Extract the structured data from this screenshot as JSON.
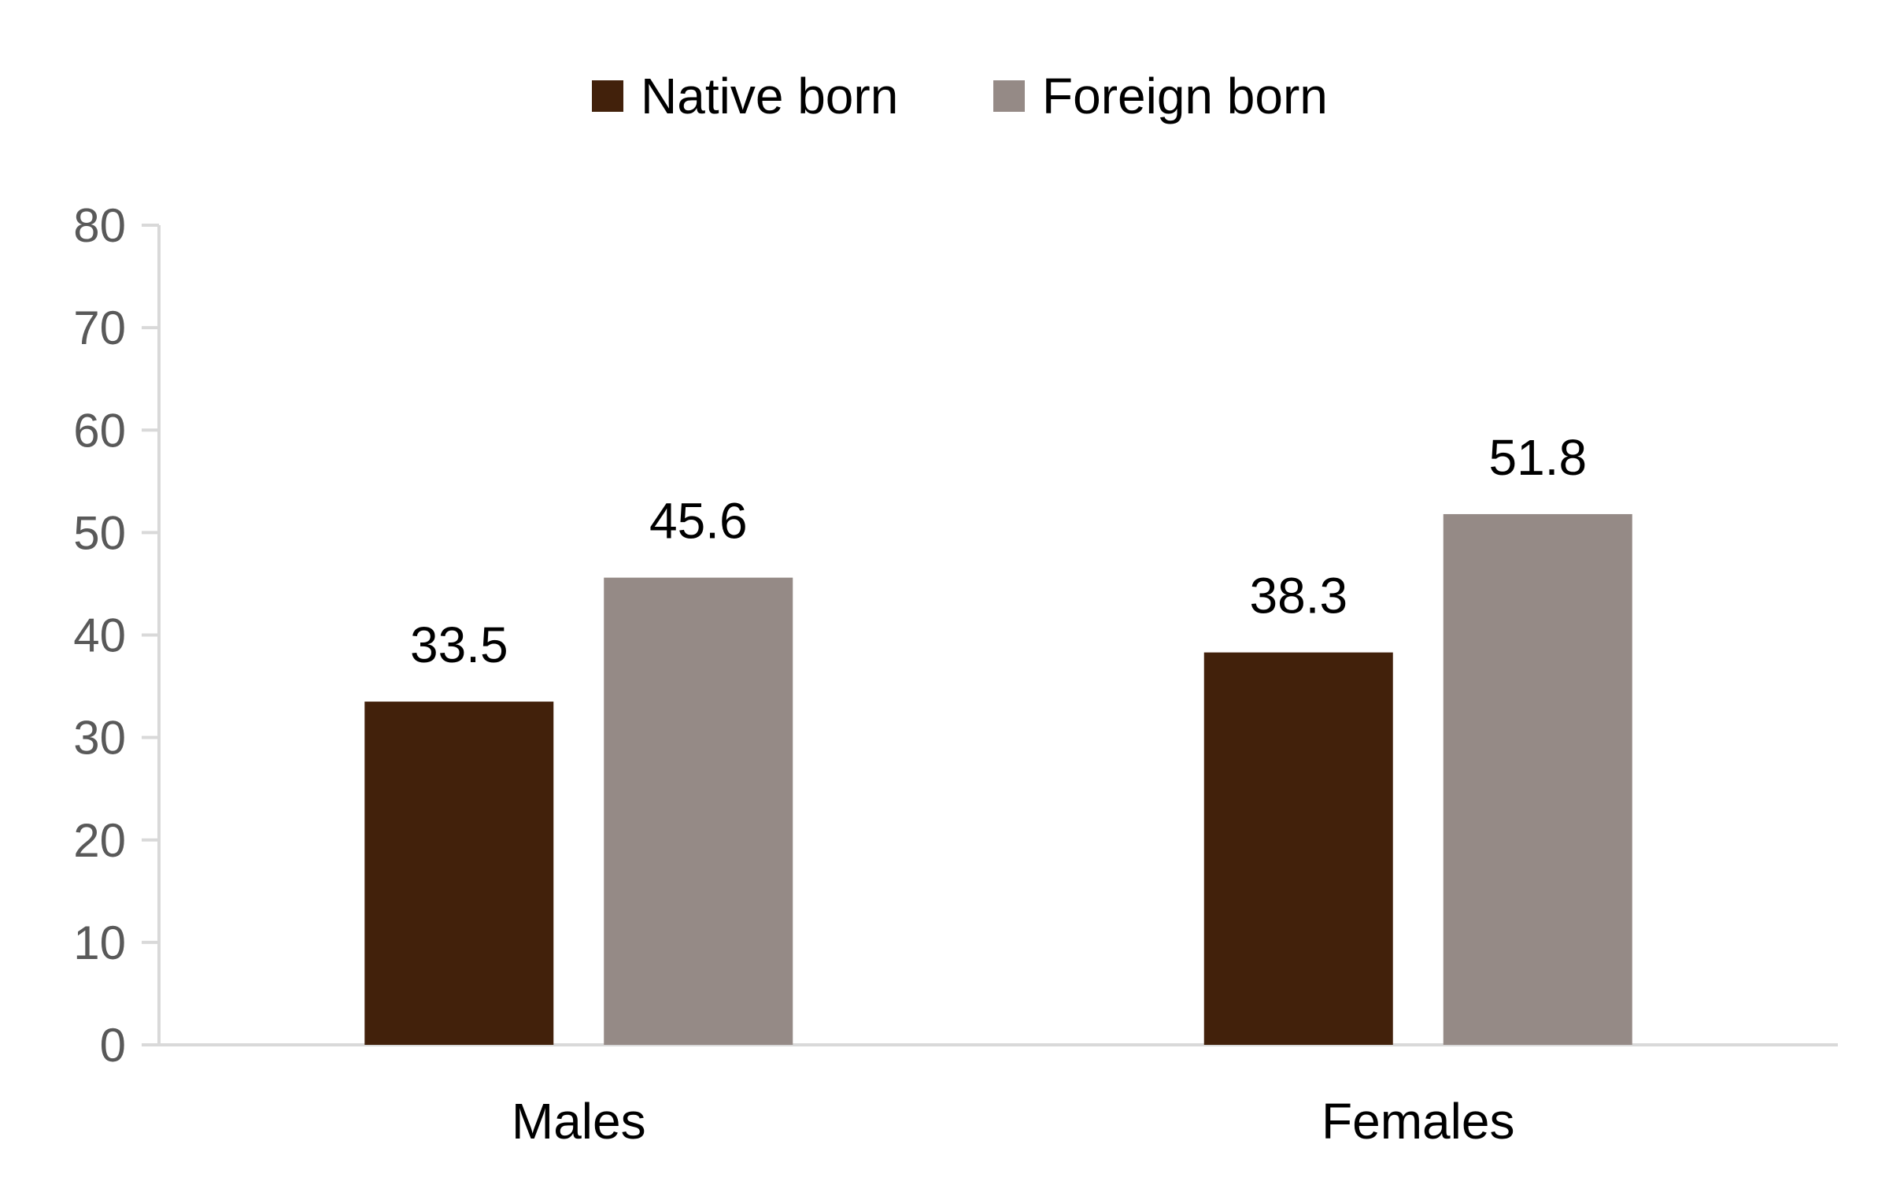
{
  "chart_data": {
    "type": "bar",
    "categories": [
      "Males",
      "Females"
    ],
    "series": [
      {
        "name": "Native born",
        "values": [
          33.5,
          38.3
        ],
        "color": "#42210B"
      },
      {
        "name": "Foreign born",
        "values": [
          45.6,
          51.8
        ],
        "color": "#958A86"
      }
    ],
    "ylim": [
      0,
      80
    ],
    "yticks": [
      0,
      10,
      20,
      30,
      40,
      50,
      60,
      70,
      80
    ],
    "grid": false,
    "legend_position": "top",
    "data_labels": true,
    "axis_color": "#D9D9D9",
    "tick_label_color": "#595959"
  }
}
